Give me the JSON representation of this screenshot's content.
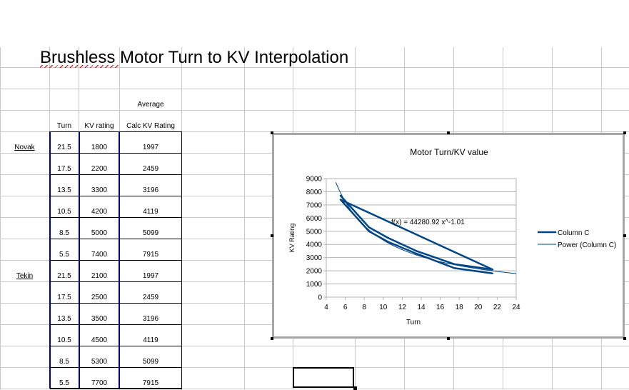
{
  "title": "Brushless Motor Turn to KV Interpolation",
  "headers": {
    "average": "Average",
    "turn": "Turn",
    "kv": "KV rating",
    "calc": "Calc KV Rating"
  },
  "rows": [
    {
      "brand": "Novak",
      "turn": "21.5",
      "kv": "1800",
      "calc": "1997"
    },
    {
      "brand": "",
      "turn": "17.5",
      "kv": "2200",
      "calc": "2459"
    },
    {
      "brand": "",
      "turn": "13.5",
      "kv": "3300",
      "calc": "3196"
    },
    {
      "brand": "",
      "turn": "10.5",
      "kv": "4200",
      "calc": "4119"
    },
    {
      "brand": "",
      "turn": "8.5",
      "kv": "5000",
      "calc": "5099"
    },
    {
      "brand": "",
      "turn": "5.5",
      "kv": "7400",
      "calc": "7915"
    },
    {
      "brand": "Tekin",
      "turn": "21.5",
      "kv": "2100",
      "calc": "1997"
    },
    {
      "brand": "",
      "turn": "17.5",
      "kv": "2500",
      "calc": "2459"
    },
    {
      "brand": "",
      "turn": "13.5",
      "kv": "3500",
      "calc": "3196"
    },
    {
      "brand": "",
      "turn": "10.5",
      "kv": "4500",
      "calc": "4119"
    },
    {
      "brand": "",
      "turn": "8.5",
      "kv": "5300",
      "calc": "5099"
    },
    {
      "brand": "",
      "turn": "5.5",
      "kv": "7700",
      "calc": "7915"
    }
  ],
  "chart_data": {
    "type": "line",
    "title": "Motor Turn/KV value",
    "xlabel": "Turn",
    "ylabel": "KV Rating",
    "xlim": [
      4,
      24
    ],
    "ylim": [
      0,
      9000
    ],
    "xticks": [
      "4",
      "6",
      "8",
      "10",
      "12",
      "14",
      "16",
      "18",
      "20",
      "22",
      "24"
    ],
    "yticks": [
      "0",
      "1000",
      "2000",
      "3000",
      "4000",
      "5000",
      "6000",
      "7000",
      "8000",
      "9000"
    ],
    "grid": true,
    "legend_position": "right",
    "series": [
      {
        "name": "Column C",
        "color": "#004586",
        "x": [
          21.5,
          17.5,
          13.5,
          10.5,
          8.5,
          5.5,
          21.5,
          17.5,
          13.5,
          10.5,
          8.5,
          5.5
        ],
        "y": [
          1800,
          2200,
          3300,
          4200,
          5000,
          7400,
          2100,
          2500,
          3500,
          4500,
          5300,
          7700
        ]
      },
      {
        "name": "Power (Column C)",
        "color": "#004586",
        "coefficient": 44280.92,
        "exponent": -1.01
      }
    ],
    "annotation": "f(x) = 44280.92 x^-1.01"
  }
}
